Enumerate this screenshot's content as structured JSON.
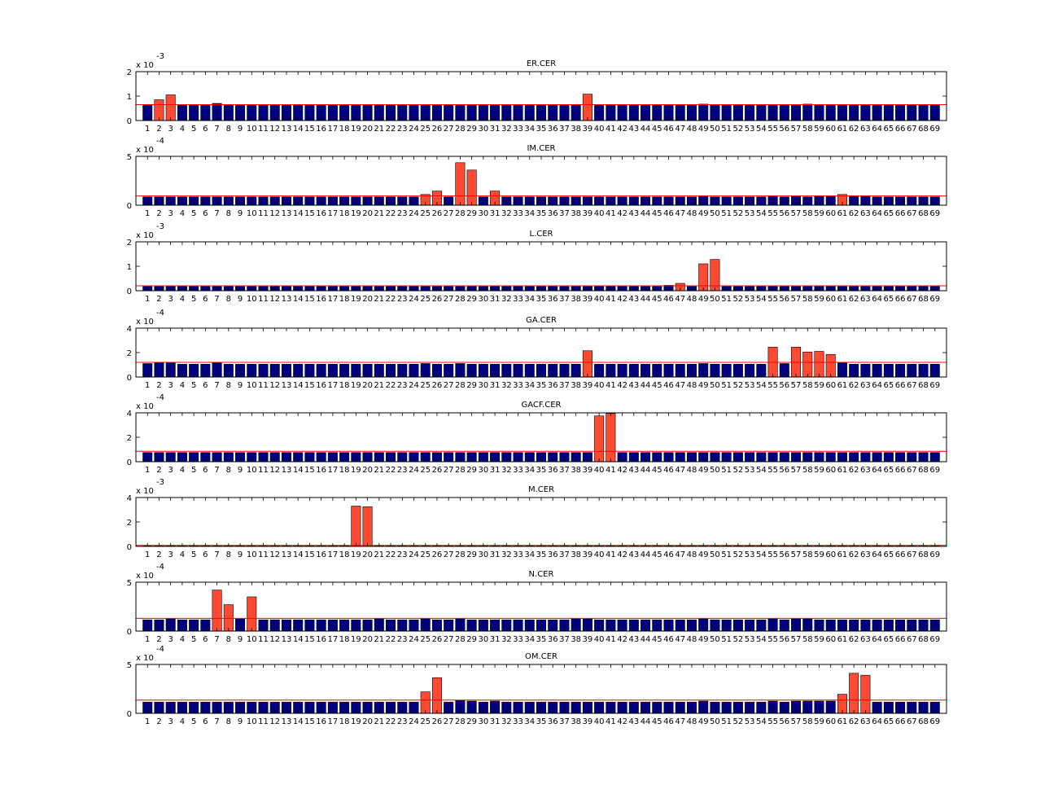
{
  "colors": {
    "baseline_bar": "#00007f",
    "outlier_bar": "#ff4a33",
    "threshold_line": "#ff0000",
    "axes": "#000000",
    "background": "#ffffff"
  },
  "chart_data": [
    {
      "type": "bar",
      "title": "ER.CER",
      "scale_label": "x 10",
      "scale_exponent": "-3",
      "ylim": [
        0,
        2
      ],
      "yticks": [
        "0",
        "1",
        "2"
      ],
      "threshold": 0.65,
      "categories": [
        "1",
        "2",
        "3",
        "4",
        "5",
        "6",
        "7",
        "8",
        "9",
        "10",
        "11",
        "12",
        "13",
        "14",
        "15",
        "16",
        "17",
        "18",
        "19",
        "20",
        "21",
        "22",
        "23",
        "24",
        "25",
        "26",
        "27",
        "28",
        "29",
        "30",
        "31",
        "32",
        "33",
        "34",
        "35",
        "36",
        "37",
        "38",
        "39",
        "40",
        "41",
        "42",
        "43",
        "44",
        "45",
        "46",
        "47",
        "48",
        "49",
        "50",
        "51",
        "52",
        "53",
        "54",
        "55",
        "56",
        "57",
        "58",
        "59",
        "60",
        "61",
        "62",
        "63",
        "64",
        "65",
        "66",
        "67",
        "68",
        "69"
      ],
      "values": [
        0.62,
        0.85,
        1.05,
        0.62,
        0.62,
        0.62,
        0.7,
        0.62,
        0.62,
        0.62,
        0.62,
        0.62,
        0.62,
        0.62,
        0.62,
        0.62,
        0.62,
        0.62,
        0.62,
        0.62,
        0.62,
        0.62,
        0.62,
        0.62,
        0.62,
        0.62,
        0.62,
        0.62,
        0.62,
        0.62,
        0.62,
        0.62,
        0.62,
        0.62,
        0.62,
        0.62,
        0.62,
        0.64,
        1.08,
        0.62,
        0.62,
        0.62,
        0.62,
        0.62,
        0.62,
        0.62,
        0.62,
        0.62,
        0.67,
        0.62,
        0.62,
        0.62,
        0.62,
        0.62,
        0.62,
        0.62,
        0.62,
        0.67,
        0.62,
        0.62,
        0.62,
        0.62,
        0.62,
        0.62,
        0.62,
        0.62,
        0.62,
        0.62,
        0.62
      ],
      "outliers": [
        2,
        3,
        39
      ]
    },
    {
      "type": "bar",
      "title": "IM.CER",
      "scale_label": "x 10",
      "scale_exponent": "-4",
      "ylim": [
        0,
        5
      ],
      "yticks": [
        "0",
        "5"
      ],
      "threshold": 0.95,
      "categories": [
        "1",
        "2",
        "3",
        "4",
        "5",
        "6",
        "7",
        "8",
        "9",
        "10",
        "11",
        "12",
        "13",
        "14",
        "15",
        "16",
        "17",
        "18",
        "19",
        "20",
        "21",
        "22",
        "23",
        "24",
        "25",
        "26",
        "27",
        "28",
        "29",
        "30",
        "31",
        "32",
        "33",
        "34",
        "35",
        "36",
        "37",
        "38",
        "39",
        "40",
        "41",
        "42",
        "43",
        "44",
        "45",
        "46",
        "47",
        "48",
        "49",
        "50",
        "51",
        "52",
        "53",
        "54",
        "55",
        "56",
        "57",
        "58",
        "59",
        "60",
        "61",
        "62",
        "63",
        "64",
        "65",
        "66",
        "67",
        "68",
        "69"
      ],
      "values": [
        0.85,
        0.85,
        0.85,
        0.85,
        0.85,
        0.85,
        0.85,
        0.85,
        0.85,
        0.85,
        0.85,
        0.85,
        0.85,
        0.85,
        0.85,
        0.85,
        0.85,
        0.85,
        0.85,
        0.85,
        0.85,
        0.85,
        0.85,
        0.85,
        1.1,
        1.45,
        0.85,
        4.35,
        3.6,
        0.85,
        1.45,
        0.85,
        0.85,
        0.85,
        0.85,
        0.85,
        0.85,
        0.85,
        0.85,
        0.85,
        0.85,
        0.85,
        0.85,
        0.85,
        0.85,
        0.85,
        0.85,
        0.85,
        0.95,
        0.85,
        0.85,
        0.85,
        0.85,
        0.85,
        0.95,
        0.85,
        0.95,
        0.85,
        0.95,
        0.95,
        1.1,
        0.95,
        0.95,
        0.85,
        0.85,
        0.85,
        0.85,
        0.85,
        0.85
      ],
      "outliers": [
        25,
        26,
        28,
        29,
        31,
        61
      ]
    },
    {
      "type": "bar",
      "title": "L.CER",
      "scale_label": "x 10",
      "scale_exponent": "-3",
      "ylim": [
        0,
        2
      ],
      "yticks": [
        "0",
        "1",
        "2"
      ],
      "threshold": 0.2,
      "categories": [
        "1",
        "2",
        "3",
        "4",
        "5",
        "6",
        "7",
        "8",
        "9",
        "10",
        "11",
        "12",
        "13",
        "14",
        "15",
        "16",
        "17",
        "18",
        "19",
        "20",
        "21",
        "22",
        "23",
        "24",
        "25",
        "26",
        "27",
        "28",
        "29",
        "30",
        "31",
        "32",
        "33",
        "34",
        "35",
        "36",
        "37",
        "38",
        "39",
        "40",
        "41",
        "42",
        "43",
        "44",
        "45",
        "46",
        "47",
        "48",
        "49",
        "50",
        "51",
        "52",
        "53",
        "54",
        "55",
        "56",
        "57",
        "58",
        "59",
        "60",
        "61",
        "62",
        "63",
        "64",
        "65",
        "66",
        "67",
        "68",
        "69"
      ],
      "values": [
        0.17,
        0.17,
        0.17,
        0.17,
        0.17,
        0.17,
        0.17,
        0.17,
        0.17,
        0.17,
        0.17,
        0.17,
        0.17,
        0.17,
        0.17,
        0.17,
        0.17,
        0.17,
        0.17,
        0.17,
        0.17,
        0.17,
        0.17,
        0.17,
        0.17,
        0.17,
        0.17,
        0.17,
        0.17,
        0.17,
        0.17,
        0.17,
        0.17,
        0.17,
        0.17,
        0.17,
        0.17,
        0.17,
        0.17,
        0.17,
        0.17,
        0.17,
        0.17,
        0.17,
        0.17,
        0.22,
        0.3,
        0.17,
        1.1,
        1.28,
        0.17,
        0.17,
        0.17,
        0.17,
        0.17,
        0.17,
        0.17,
        0.17,
        0.17,
        0.17,
        0.17,
        0.17,
        0.17,
        0.17,
        0.17,
        0.17,
        0.17,
        0.17,
        0.17
      ],
      "outliers": [
        47,
        49,
        50
      ]
    },
    {
      "type": "bar",
      "title": "GA.CER",
      "scale_label": "x 10",
      "scale_exponent": "-4",
      "ylim": [
        0,
        4
      ],
      "yticks": [
        "0",
        "2",
        "4"
      ],
      "threshold": 1.2,
      "categories": [
        "1",
        "2",
        "3",
        "4",
        "5",
        "6",
        "7",
        "8",
        "9",
        "10",
        "11",
        "12",
        "13",
        "14",
        "15",
        "16",
        "17",
        "18",
        "19",
        "20",
        "21",
        "22",
        "23",
        "24",
        "25",
        "26",
        "27",
        "28",
        "29",
        "30",
        "31",
        "32",
        "33",
        "34",
        "35",
        "36",
        "37",
        "38",
        "39",
        "40",
        "41",
        "42",
        "43",
        "44",
        "45",
        "46",
        "47",
        "48",
        "49",
        "50",
        "51",
        "52",
        "53",
        "54",
        "55",
        "56",
        "57",
        "58",
        "59",
        "60",
        "61",
        "62",
        "63",
        "64",
        "65",
        "66",
        "67",
        "68",
        "69"
      ],
      "values": [
        1.1,
        1.15,
        1.15,
        1.05,
        1.05,
        1.05,
        1.15,
        1.05,
        1.05,
        1.05,
        1.05,
        1.05,
        1.05,
        1.05,
        1.05,
        1.05,
        1.05,
        1.05,
        1.05,
        1.05,
        1.05,
        1.05,
        1.05,
        1.05,
        1.1,
        1.05,
        1.05,
        1.1,
        1.05,
        1.05,
        1.05,
        1.05,
        1.05,
        1.05,
        1.05,
        1.05,
        1.05,
        1.05,
        2.15,
        1.05,
        1.05,
        1.05,
        1.05,
        1.05,
        1.05,
        1.05,
        1.05,
        1.05,
        1.1,
        1.05,
        1.05,
        1.05,
        1.05,
        1.05,
        2.45,
        1.1,
        2.45,
        2.05,
        2.1,
        1.85,
        1.15,
        1.05,
        1.05,
        1.05,
        1.05,
        1.05,
        1.05,
        1.05,
        1.05
      ],
      "outliers": [
        39,
        55,
        57,
        58,
        59,
        60
      ]
    },
    {
      "type": "bar",
      "title": "GACF.CER",
      "scale_label": "x 10",
      "scale_exponent": "-4",
      "ylim": [
        0,
        4
      ],
      "yticks": [
        "0",
        "2",
        "4"
      ],
      "threshold": 0.85,
      "categories": [
        "1",
        "2",
        "3",
        "4",
        "5",
        "6",
        "7",
        "8",
        "9",
        "10",
        "11",
        "12",
        "13",
        "14",
        "15",
        "16",
        "17",
        "18",
        "19",
        "20",
        "21",
        "22",
        "23",
        "24",
        "25",
        "26",
        "27",
        "28",
        "29",
        "30",
        "31",
        "32",
        "33",
        "34",
        "35",
        "36",
        "37",
        "38",
        "39",
        "40",
        "41",
        "42",
        "43",
        "44",
        "45",
        "46",
        "47",
        "48",
        "49",
        "50",
        "51",
        "52",
        "53",
        "54",
        "55",
        "56",
        "57",
        "58",
        "59",
        "60",
        "61",
        "62",
        "63",
        "64",
        "65",
        "66",
        "67",
        "68",
        "69"
      ],
      "values": [
        0.75,
        0.75,
        0.75,
        0.75,
        0.75,
        0.75,
        0.75,
        0.75,
        0.75,
        0.75,
        0.75,
        0.75,
        0.75,
        0.75,
        0.75,
        0.75,
        0.75,
        0.75,
        0.75,
        0.75,
        0.75,
        0.75,
        0.75,
        0.75,
        0.75,
        0.75,
        0.75,
        0.75,
        0.75,
        0.75,
        0.75,
        0.75,
        0.75,
        0.75,
        0.75,
        0.75,
        0.75,
        0.75,
        0.75,
        3.75,
        3.95,
        0.75,
        0.75,
        0.75,
        0.75,
        0.75,
        0.75,
        0.75,
        0.75,
        0.75,
        0.75,
        0.75,
        0.75,
        0.75,
        0.75,
        0.75,
        0.75,
        0.75,
        0.75,
        0.75,
        0.75,
        0.75,
        0.75,
        0.75,
        0.75,
        0.75,
        0.75,
        0.75,
        0.75
      ],
      "outliers": [
        40,
        41
      ]
    },
    {
      "type": "bar",
      "title": "M.CER",
      "scale_label": "x 10",
      "scale_exponent": "-3",
      "ylim": [
        0,
        4
      ],
      "yticks": [
        "0",
        "2",
        "4"
      ],
      "threshold": 0.08,
      "categories": [
        "1",
        "2",
        "3",
        "4",
        "5",
        "6",
        "7",
        "8",
        "9",
        "10",
        "11",
        "12",
        "13",
        "14",
        "15",
        "16",
        "17",
        "18",
        "19",
        "20",
        "21",
        "22",
        "23",
        "24",
        "25",
        "26",
        "27",
        "28",
        "29",
        "30",
        "31",
        "32",
        "33",
        "34",
        "35",
        "36",
        "37",
        "38",
        "39",
        "40",
        "41",
        "42",
        "43",
        "44",
        "45",
        "46",
        "47",
        "48",
        "49",
        "50",
        "51",
        "52",
        "53",
        "54",
        "55",
        "56",
        "57",
        "58",
        "59",
        "60",
        "61",
        "62",
        "63",
        "64",
        "65",
        "66",
        "67",
        "68",
        "69"
      ],
      "values": [
        0.05,
        0.05,
        0.05,
        0.05,
        0.05,
        0.05,
        0.05,
        0.05,
        0.05,
        0.05,
        0.05,
        0.05,
        0.05,
        0.05,
        0.05,
        0.05,
        0.05,
        0.05,
        3.3,
        3.25,
        0.05,
        0.05,
        0.05,
        0.05,
        0.05,
        0.05,
        0.05,
        0.05,
        0.05,
        0.05,
        0.05,
        0.05,
        0.05,
        0.05,
        0.05,
        0.05,
        0.05,
        0.05,
        0.05,
        0.05,
        0.05,
        0.05,
        0.05,
        0.05,
        0.05,
        0.05,
        0.05,
        0.05,
        0.05,
        0.05,
        0.05,
        0.05,
        0.05,
        0.05,
        0.05,
        0.05,
        0.05,
        0.05,
        0.05,
        0.05,
        0.05,
        0.05,
        0.05,
        0.05,
        0.05,
        0.05,
        0.05,
        0.05,
        0.05
      ],
      "outliers": [
        19,
        20
      ]
    },
    {
      "type": "bar",
      "title": "N.CER",
      "scale_label": "x 10",
      "scale_exponent": "-4",
      "ylim": [
        0,
        5
      ],
      "yticks": [
        "0",
        "5"
      ],
      "threshold": 1.3,
      "categories": [
        "1",
        "2",
        "3",
        "4",
        "5",
        "6",
        "7",
        "8",
        "9",
        "10",
        "11",
        "12",
        "13",
        "14",
        "15",
        "16",
        "17",
        "18",
        "19",
        "20",
        "21",
        "22",
        "23",
        "24",
        "25",
        "26",
        "27",
        "28",
        "29",
        "30",
        "31",
        "32",
        "33",
        "34",
        "35",
        "36",
        "37",
        "38",
        "39",
        "40",
        "41",
        "42",
        "43",
        "44",
        "45",
        "46",
        "47",
        "48",
        "49",
        "50",
        "51",
        "52",
        "53",
        "54",
        "55",
        "56",
        "57",
        "58",
        "59",
        "60",
        "61",
        "62",
        "63",
        "64",
        "65",
        "66",
        "67",
        "68",
        "69"
      ],
      "values": [
        1.15,
        1.15,
        1.25,
        1.15,
        1.15,
        1.15,
        4.2,
        2.7,
        1.25,
        3.5,
        1.15,
        1.15,
        1.15,
        1.15,
        1.15,
        1.15,
        1.15,
        1.15,
        1.15,
        1.15,
        1.25,
        1.15,
        1.15,
        1.15,
        1.25,
        1.15,
        1.15,
        1.25,
        1.15,
        1.15,
        1.15,
        1.15,
        1.15,
        1.15,
        1.15,
        1.15,
        1.15,
        1.25,
        1.25,
        1.15,
        1.15,
        1.15,
        1.15,
        1.15,
        1.15,
        1.15,
        1.15,
        1.15,
        1.25,
        1.15,
        1.15,
        1.15,
        1.15,
        1.15,
        1.25,
        1.15,
        1.25,
        1.25,
        1.15,
        1.15,
        1.15,
        1.15,
        1.15,
        1.15,
        1.15,
        1.15,
        1.15,
        1.15,
        1.15
      ],
      "outliers": [
        7,
        8,
        10
      ]
    },
    {
      "type": "bar",
      "title": "OM.CER",
      "scale_label": "x 10",
      "scale_exponent": "-4",
      "ylim": [
        0,
        5
      ],
      "yticks": [
        "0",
        "5"
      ],
      "threshold": 1.35,
      "categories": [
        "1",
        "2",
        "3",
        "4",
        "5",
        "6",
        "7",
        "8",
        "9",
        "10",
        "11",
        "12",
        "13",
        "14",
        "15",
        "16",
        "17",
        "18",
        "19",
        "20",
        "21",
        "22",
        "23",
        "24",
        "25",
        "26",
        "27",
        "28",
        "29",
        "30",
        "31",
        "32",
        "33",
        "34",
        "35",
        "36",
        "37",
        "38",
        "39",
        "40",
        "41",
        "42",
        "43",
        "44",
        "45",
        "46",
        "47",
        "48",
        "49",
        "50",
        "51",
        "52",
        "53",
        "54",
        "55",
        "56",
        "57",
        "58",
        "59",
        "60",
        "61",
        "62",
        "63",
        "64",
        "65",
        "66",
        "67",
        "68",
        "69"
      ],
      "values": [
        1.15,
        1.15,
        1.15,
        1.15,
        1.15,
        1.15,
        1.15,
        1.15,
        1.15,
        1.15,
        1.15,
        1.15,
        1.15,
        1.15,
        1.15,
        1.15,
        1.15,
        1.15,
        1.15,
        1.15,
        1.15,
        1.15,
        1.15,
        1.15,
        2.2,
        3.65,
        1.15,
        1.35,
        1.25,
        1.15,
        1.25,
        1.15,
        1.15,
        1.15,
        1.15,
        1.15,
        1.15,
        1.15,
        1.15,
        1.15,
        1.15,
        1.15,
        1.15,
        1.15,
        1.15,
        1.15,
        1.15,
        1.15,
        1.25,
        1.15,
        1.15,
        1.15,
        1.15,
        1.15,
        1.25,
        1.15,
        1.25,
        1.25,
        1.25,
        1.25,
        1.95,
        4.1,
        3.9,
        1.15,
        1.15,
        1.15,
        1.15,
        1.15,
        1.15
      ],
      "outliers": [
        25,
        26,
        61,
        62,
        63
      ]
    }
  ]
}
